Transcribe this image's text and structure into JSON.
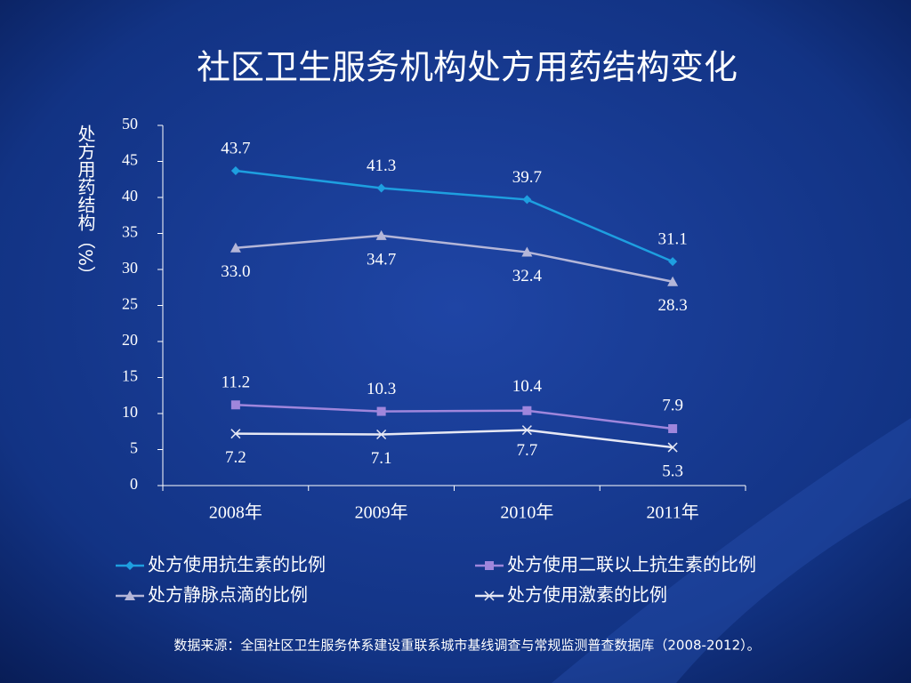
{
  "chart_data": {
    "type": "line",
    "title": "社区卫生服务机构处方用药结构变化",
    "y_label": "处方用药结构（%）",
    "categories": [
      "2008年",
      "2009年",
      "2010年",
      "2011年"
    ],
    "series": [
      {
        "name": "处方使用抗生素的比例",
        "color": "#1e9fe0",
        "marker": "diamond",
        "values": [
          43.7,
          41.3,
          39.7,
          31.1
        ],
        "value_labels": [
          "43.7",
          "41.3",
          "39.7",
          "31.1"
        ]
      },
      {
        "name": "处方使用二联以上抗生素的比例",
        "color": "#9f86dc",
        "marker": "square",
        "values": [
          11.2,
          10.3,
          10.4,
          7.9
        ],
        "value_labels": [
          "11.2",
          "10.3",
          "10.4",
          "7.9"
        ]
      },
      {
        "name": "处方静脉点滴的比例",
        "color": "#b4b6d8",
        "marker": "triangle",
        "values": [
          33.0,
          34.7,
          32.4,
          28.3
        ],
        "value_labels": [
          "33.0",
          "34.7",
          "32.4",
          "28.3"
        ]
      },
      {
        "name": "处方使用激素的比例",
        "color": "#e6e8f4",
        "marker": "x",
        "values": [
          7.2,
          7.1,
          7.7,
          5.3
        ],
        "value_labels": [
          "7.2",
          "7.1",
          "7.7",
          "5.3"
        ]
      }
    ],
    "ylim": [
      0,
      50
    ],
    "yticks": [
      0,
      5,
      10,
      15,
      20,
      25,
      30,
      35,
      40,
      45,
      50
    ],
    "source": "数据来源：全国社区卫生服务体系建设重联系城市基线调查与常规监测普查数据库（2008-2012）。"
  }
}
